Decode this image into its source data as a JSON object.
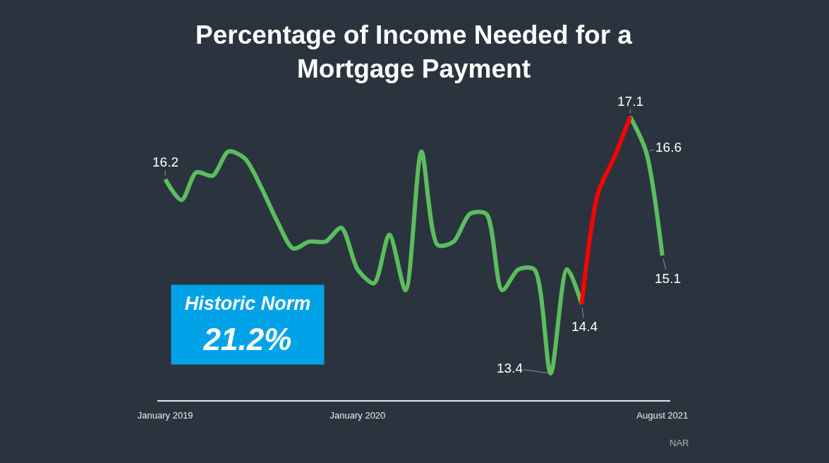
{
  "chart_data": {
    "type": "line",
    "title": "Percentage of Income Needed for a Mortgage Payment",
    "x": [
      "2019-01",
      "2019-02",
      "2019-03",
      "2019-04",
      "2019-05",
      "2019-06",
      "2019-07",
      "2019-08",
      "2019-09",
      "2019-10",
      "2019-11",
      "2019-12",
      "2020-01",
      "2020-02",
      "2020-03",
      "2020-04",
      "2020-05",
      "2020-06",
      "2020-07",
      "2020-08",
      "2020-09",
      "2020-10",
      "2020-11",
      "2020-12",
      "2021-01",
      "2021-02",
      "2021-03",
      "2021-04",
      "2021-05",
      "2021-06",
      "2021-07",
      "2021-08"
    ],
    "series": [
      {
        "color": "#5cbd5f",
        "values": [
          16.2,
          15.9,
          16.3,
          16.25,
          16.6,
          16.5,
          16.1,
          15.6,
          15.2,
          15.3,
          15.3,
          15.5,
          14.9,
          14.7,
          15.4,
          14.6,
          16.6,
          15.25,
          15.3,
          15.7,
          15.7,
          14.6,
          14.9,
          14.9,
          13.4,
          14.9,
          14.4,
          null,
          null,
          17.1,
          16.6,
          15.1
        ],
        "value_labels": [
          "16.2",
          null,
          null,
          null,
          null,
          null,
          null,
          null,
          null,
          null,
          null,
          null,
          null,
          null,
          null,
          null,
          null,
          null,
          null,
          null,
          null,
          null,
          null,
          null,
          "13.4",
          null,
          "14.4",
          null,
          null,
          "17.1",
          "16.6",
          "15.1"
        ]
      },
      {
        "color": "#ff0000",
        "values": [
          null,
          null,
          null,
          null,
          null,
          null,
          null,
          null,
          null,
          null,
          null,
          null,
          null,
          null,
          null,
          null,
          null,
          null,
          null,
          null,
          null,
          null,
          null,
          null,
          null,
          null,
          14.4,
          16.0,
          16.5,
          17.1,
          null,
          null
        ]
      }
    ],
    "xlim": [
      "2018-12-17",
      "2021-08-16"
    ],
    "xticks": [
      {
        "value": "2019-01",
        "label": "January 2019"
      },
      {
        "value": "2020-01",
        "label": "January 2020"
      },
      {
        "value": "2021-08",
        "label": "August 2021"
      }
    ],
    "tick_labels": "x",
    "line_style": "solid",
    "annotations": [
      "Historic Norm",
      "21.2%",
      "NAR"
    ]
  }
}
